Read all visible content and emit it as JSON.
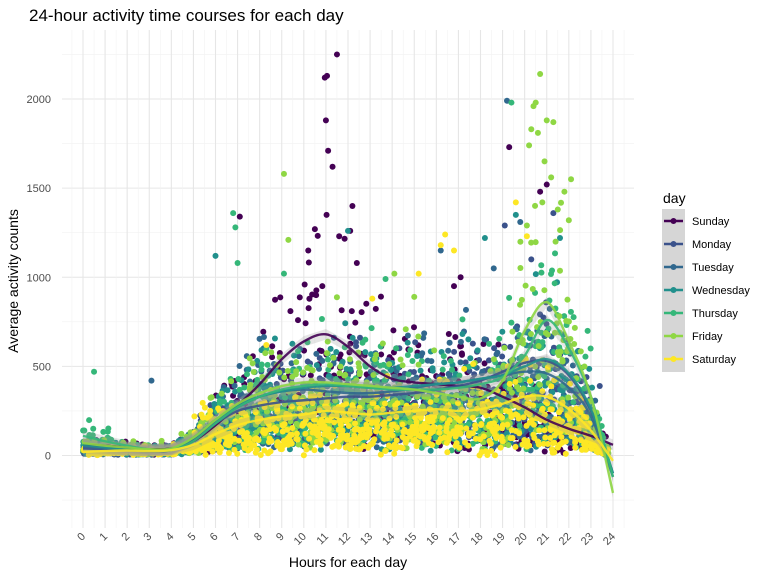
{
  "chart_data": {
    "type": "scatter",
    "title": "24-hour activity time courses for each day",
    "xlabel": "Hours for each day",
    "ylabel": "Average activity counts",
    "xlim": [
      -1,
      25
    ],
    "ylim": [
      -400,
      2350
    ],
    "xticks": [
      0,
      1,
      2,
      3,
      4,
      5,
      6,
      7,
      8,
      9,
      10,
      11,
      12,
      13,
      14,
      15,
      16,
      17,
      18,
      19,
      20,
      21,
      22,
      23,
      24
    ],
    "yticks": [
      0,
      500,
      1000,
      1500,
      2000
    ],
    "grid": true,
    "legend": {
      "title": "day",
      "position": "right"
    },
    "series": [
      {
        "name": "Sunday",
        "color": "#440154",
        "smooth": [
          [
            0,
            60
          ],
          [
            1,
            55
          ],
          [
            2,
            45
          ],
          [
            3,
            35
          ],
          [
            4,
            40
          ],
          [
            5,
            80
          ],
          [
            6,
            170
          ],
          [
            7,
            280
          ],
          [
            8,
            400
          ],
          [
            9,
            540
          ],
          [
            10,
            640
          ],
          [
            11,
            680
          ],
          [
            12,
            610
          ],
          [
            13,
            500
          ],
          [
            14,
            430
          ],
          [
            15,
            410
          ],
          [
            16,
            400
          ],
          [
            17,
            390
          ],
          [
            18,
            380
          ],
          [
            19,
            330
          ],
          [
            20,
            270
          ],
          [
            21,
            200
          ],
          [
            22,
            150
          ],
          [
            23,
            110
          ],
          [
            24,
            60
          ]
        ],
        "outliers": [
          [
            11.05,
            2130
          ],
          [
            10.95,
            2120
          ],
          [
            11.5,
            2250
          ],
          [
            11.0,
            1880
          ],
          [
            11.1,
            1710
          ],
          [
            11.3,
            1620
          ],
          [
            12.2,
            1400
          ],
          [
            12.1,
            1260
          ],
          [
            7.1,
            1340
          ],
          [
            10.5,
            1270
          ],
          [
            11.6,
            1230
          ],
          [
            16.8,
            950
          ],
          [
            17.1,
            1000
          ],
          [
            20.7,
            1480
          ],
          [
            19.3,
            1730
          ],
          [
            21.0,
            1520
          ],
          [
            10.2,
            1150
          ],
          [
            12.4,
            1080
          ]
        ]
      },
      {
        "name": "Monday",
        "color": "#3B528B",
        "smooth": [
          [
            0,
            40
          ],
          [
            1,
            35
          ],
          [
            2,
            30
          ],
          [
            3,
            25
          ],
          [
            4,
            35
          ],
          [
            5,
            90
          ],
          [
            6,
            180
          ],
          [
            7,
            250
          ],
          [
            8,
            280
          ],
          [
            9,
            300
          ],
          [
            10,
            310
          ],
          [
            11,
            320
          ],
          [
            12,
            330
          ],
          [
            13,
            330
          ],
          [
            14,
            340
          ],
          [
            15,
            350
          ],
          [
            16,
            370
          ],
          [
            17,
            390
          ],
          [
            18,
            420
          ],
          [
            19,
            470
          ],
          [
            20,
            520
          ],
          [
            21,
            530
          ],
          [
            22,
            450
          ],
          [
            23,
            250
          ],
          [
            24,
            -100
          ]
        ],
        "outliers": [
          [
            21.3,
            1360
          ],
          [
            19.1,
            1290
          ],
          [
            20.3,
            1100
          ],
          [
            22.8,
            440
          ],
          [
            23.4,
            390
          ]
        ]
      },
      {
        "name": "Tuesday",
        "color": "#31688E",
        "smooth": [
          [
            0,
            50
          ],
          [
            1,
            40
          ],
          [
            2,
            30
          ],
          [
            3,
            25
          ],
          [
            4,
            30
          ],
          [
            5,
            90
          ],
          [
            6,
            190
          ],
          [
            7,
            270
          ],
          [
            8,
            330
          ],
          [
            9,
            360
          ],
          [
            10,
            370
          ],
          [
            11,
            360
          ],
          [
            12,
            350
          ],
          [
            13,
            350
          ],
          [
            14,
            360
          ],
          [
            15,
            380
          ],
          [
            16,
            400
          ],
          [
            17,
            410
          ],
          [
            18,
            430
          ],
          [
            19,
            450
          ],
          [
            20,
            470
          ],
          [
            21,
            460
          ],
          [
            22,
            380
          ],
          [
            23,
            220
          ],
          [
            24,
            -120
          ]
        ],
        "outliers": [
          [
            3.1,
            420
          ],
          [
            19.2,
            1990
          ],
          [
            19.8,
            1310
          ],
          [
            18.6,
            1050
          ],
          [
            16.2,
            1150
          ]
        ]
      },
      {
        "name": "Wednesday",
        "color": "#21908C",
        "smooth": [
          [
            0,
            60
          ],
          [
            1,
            45
          ],
          [
            2,
            35
          ],
          [
            3,
            30
          ],
          [
            4,
            35
          ],
          [
            5,
            100
          ],
          [
            6,
            200
          ],
          [
            7,
            280
          ],
          [
            8,
            330
          ],
          [
            9,
            360
          ],
          [
            10,
            380
          ],
          [
            11,
            390
          ],
          [
            12,
            390
          ],
          [
            13,
            380
          ],
          [
            14,
            380
          ],
          [
            15,
            390
          ],
          [
            16,
            400
          ],
          [
            17,
            410
          ],
          [
            18,
            430
          ],
          [
            19,
            450
          ],
          [
            20,
            500
          ],
          [
            21,
            540
          ],
          [
            22,
            460
          ],
          [
            23,
            260
          ],
          [
            24,
            -100
          ]
        ],
        "outliers": [
          [
            6.0,
            1120
          ],
          [
            12.0,
            1260
          ],
          [
            18.2,
            1220
          ],
          [
            19.6,
            1350
          ],
          [
            21.6,
            1220
          ]
        ]
      },
      {
        "name": "Thursday",
        "color": "#35B779",
        "smooth": [
          [
            0,
            110
          ],
          [
            1,
            80
          ],
          [
            2,
            55
          ],
          [
            3,
            35
          ],
          [
            4,
            30
          ],
          [
            5,
            80
          ],
          [
            6,
            180
          ],
          [
            7,
            270
          ],
          [
            8,
            330
          ],
          [
            9,
            370
          ],
          [
            10,
            390
          ],
          [
            11,
            400
          ],
          [
            12,
            390
          ],
          [
            13,
            380
          ],
          [
            14,
            370
          ],
          [
            15,
            370
          ],
          [
            16,
            370
          ],
          [
            17,
            380
          ],
          [
            18,
            400
          ],
          [
            19,
            440
          ],
          [
            20,
            560
          ],
          [
            21,
            760
          ],
          [
            22,
            600
          ],
          [
            23,
            330
          ],
          [
            24,
            -120
          ]
        ],
        "outliers": [
          [
            0.5,
            470
          ],
          [
            6.8,
            1360
          ],
          [
            6.9,
            1280
          ],
          [
            7.0,
            1080
          ],
          [
            9.1,
            1020
          ],
          [
            19.4,
            1980
          ],
          [
            13.7,
            990
          ]
        ]
      },
      {
        "name": "Friday",
        "color": "#8FD744",
        "smooth": [
          [
            0,
            70
          ],
          [
            1,
            55
          ],
          [
            2,
            45
          ],
          [
            3,
            35
          ],
          [
            4,
            40
          ],
          [
            5,
            100
          ],
          [
            6,
            200
          ],
          [
            7,
            290
          ],
          [
            8,
            350
          ],
          [
            9,
            390
          ],
          [
            10,
            410
          ],
          [
            11,
            410
          ],
          [
            12,
            400
          ],
          [
            13,
            390
          ],
          [
            14,
            380
          ],
          [
            15,
            370
          ],
          [
            16,
            350
          ],
          [
            17,
            330
          ],
          [
            18,
            320
          ],
          [
            19,
            420
          ],
          [
            20,
            700
          ],
          [
            21,
            860
          ],
          [
            22,
            640
          ],
          [
            23,
            330
          ],
          [
            24,
            -210
          ]
        ],
        "outliers": [
          [
            9.1,
            1580
          ],
          [
            9.3,
            1210
          ],
          [
            20.7,
            2140
          ],
          [
            20.5,
            1980
          ],
          [
            20.4,
            1960
          ],
          [
            21.0,
            1880
          ],
          [
            21.3,
            1870
          ],
          [
            20.3,
            1830
          ],
          [
            20.6,
            1810
          ],
          [
            20.2,
            1740
          ],
          [
            20.9,
            1650
          ],
          [
            21.2,
            1560
          ],
          [
            22.1,
            1550
          ],
          [
            21.8,
            1480
          ],
          [
            20.8,
            1420
          ],
          [
            21.5,
            1380
          ],
          [
            22.0,
            1320
          ],
          [
            20.1,
            1290
          ],
          [
            21.4,
            1200
          ],
          [
            14.1,
            1020
          ],
          [
            15.0,
            890
          ]
        ]
      },
      {
        "name": "Saturday",
        "color": "#FDE725",
        "smooth": [
          [
            0,
            20
          ],
          [
            1,
            25
          ],
          [
            2,
            28
          ],
          [
            3,
            25
          ],
          [
            4,
            30
          ],
          [
            5,
            60
          ],
          [
            6,
            120
          ],
          [
            7,
            170
          ],
          [
            8,
            200
          ],
          [
            9,
            220
          ],
          [
            10,
            230
          ],
          [
            11,
            250
          ],
          [
            12,
            240
          ],
          [
            13,
            230
          ],
          [
            14,
            240
          ],
          [
            15,
            250
          ],
          [
            16,
            260
          ],
          [
            17,
            250
          ],
          [
            18,
            260
          ],
          [
            19,
            290
          ],
          [
            20,
            330
          ],
          [
            21,
            330
          ],
          [
            22,
            260
          ],
          [
            23,
            140
          ],
          [
            24,
            -30
          ]
        ],
        "outliers": [
          [
            16.4,
            1240
          ],
          [
            16.2,
            1180
          ],
          [
            16.8,
            1150
          ],
          [
            19.6,
            1420
          ],
          [
            20.1,
            1230
          ],
          [
            15.2,
            1020
          ],
          [
            8.3,
            620
          ],
          [
            13.1,
            880
          ]
        ]
      }
    ]
  }
}
